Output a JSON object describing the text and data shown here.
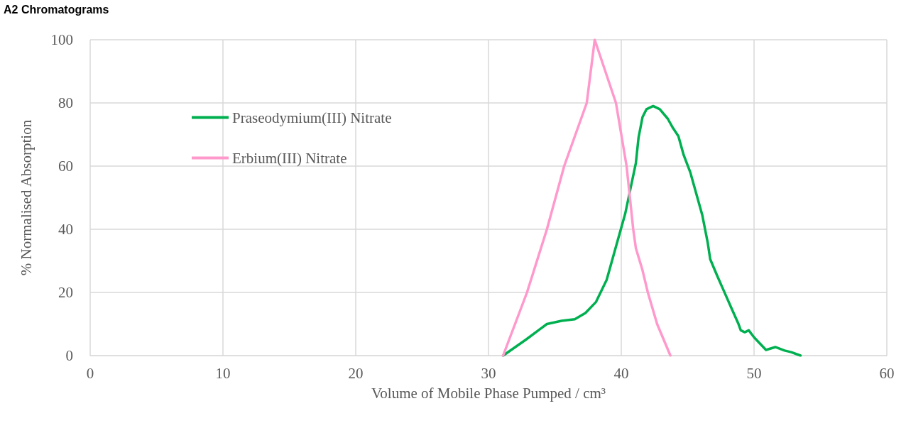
{
  "chart_data": {
    "type": "line",
    "title": "A2 Chromatograms",
    "xlabel": "Volume of Mobile Phase Pumped / cm³",
    "ylabel": "% Normalised Absorption",
    "xlim": [
      0,
      60
    ],
    "xticks": [
      0,
      10,
      20,
      30,
      40,
      50,
      60
    ],
    "ylim": [
      0,
      100
    ],
    "yticks": [
      0,
      20,
      40,
      60,
      80,
      100
    ],
    "grid": true,
    "legend": "left",
    "marker": "none",
    "line_style": "solid",
    "series": [
      {
        "name": "Praseodymium(III) Nitrate",
        "color": "#00b050",
        "x": [
          31.1,
          32.8,
          34.4,
          35.5,
          36.5,
          37.3,
          38.1,
          38.9,
          39.7,
          40.3,
          40.8,
          41.1,
          41.3,
          41.6,
          41.9,
          42.4,
          42.9,
          43.5,
          43.9,
          44.3,
          44.7,
          45.2,
          46.1,
          46.5,
          46.7,
          47.2,
          48.3,
          48.8,
          49.0,
          49.3,
          49.6,
          50.0,
          50.9,
          51.6,
          52.3,
          52.8,
          53.5
        ],
        "values": [
          0,
          5,
          10,
          11,
          11.5,
          13.5,
          17,
          24,
          36,
          45,
          55,
          61,
          69,
          75.5,
          78,
          79,
          78,
          75,
          72,
          69.5,
          63.5,
          58,
          44.5,
          36,
          30.5,
          25.5,
          15,
          10.3,
          8,
          7.4,
          8,
          5.8,
          1.8,
          2.7,
          1.6,
          1.1,
          0
        ]
      },
      {
        "name": "Erbium(III) Nitrate",
        "color": "#ff99cc",
        "x": [
          31.1,
          32.9,
          34.4,
          35.7,
          37.4,
          38.0,
          39.6,
          40.4,
          40.9,
          41.1,
          41.6,
          42.0,
          42.7,
          43.7
        ],
        "values": [
          0,
          20,
          40,
          60,
          80,
          100,
          80,
          60,
          40,
          34,
          27,
          20,
          10,
          0
        ]
      }
    ]
  }
}
